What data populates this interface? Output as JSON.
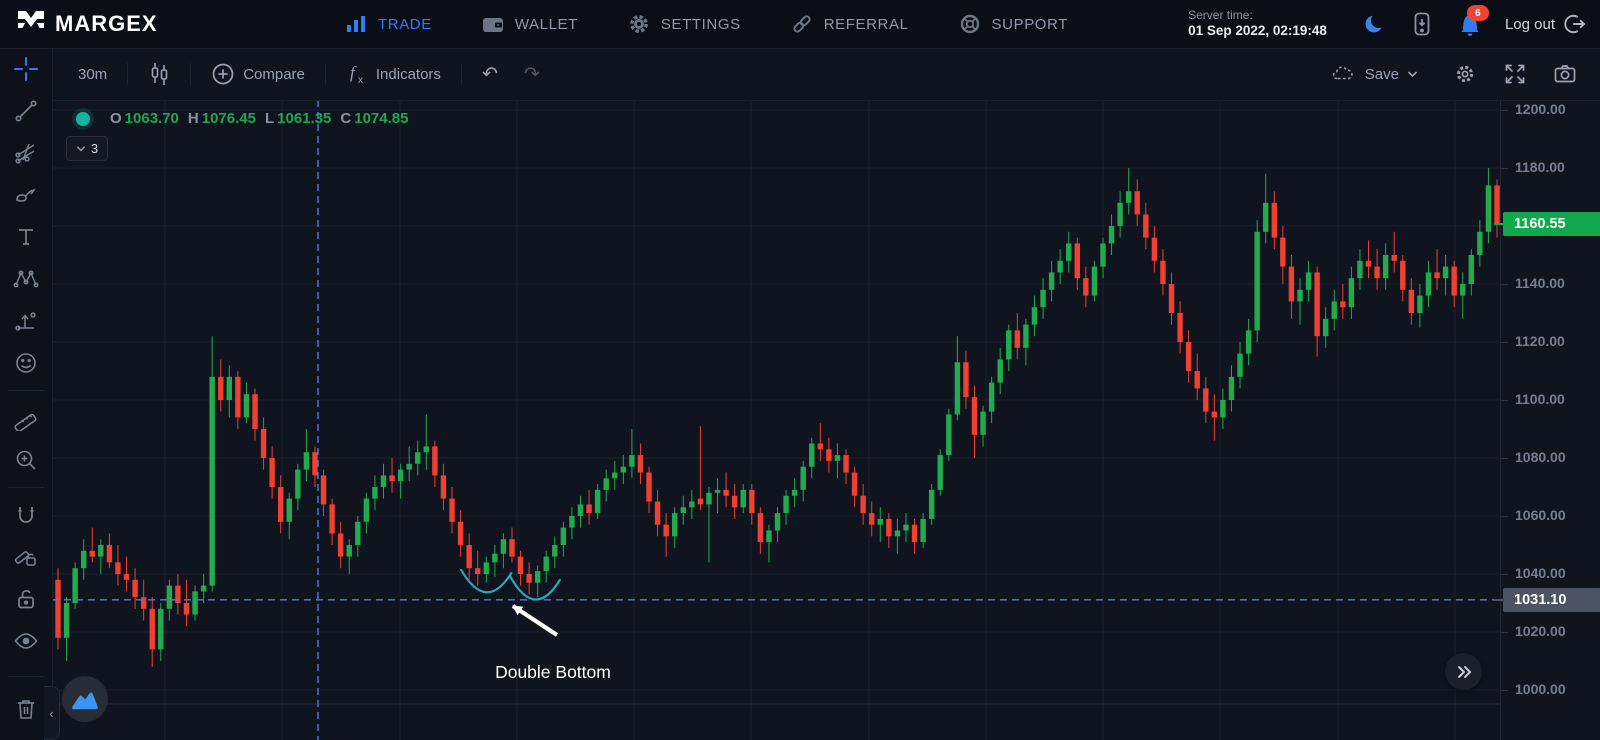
{
  "nav": {
    "brand": "MARGEX",
    "items": [
      {
        "id": "trade",
        "label": "TRADE",
        "active": true
      },
      {
        "id": "wallet",
        "label": "WALLET",
        "active": false
      },
      {
        "id": "settings",
        "label": "SETTINGS",
        "active": false
      },
      {
        "id": "referral",
        "label": "REFERRAL",
        "active": false
      },
      {
        "id": "support",
        "label": "SUPPORT",
        "active": false
      }
    ],
    "server_time_label": "Server time:",
    "server_time_value": "01 Sep 2022, 02:19:48",
    "notifications_count": "6",
    "logout_label": "Log out",
    "icons": [
      "margex-logo",
      "bar-chart-icon",
      "wallet-icon",
      "gear-icon",
      "link-icon",
      "lifebuoy-icon",
      "moon-icon",
      "mobile-app-icon",
      "bell-icon",
      "logout-icon"
    ]
  },
  "toolbar": {
    "timeframe": "30m",
    "compare_label": "Compare",
    "indicators_label": "Indicators",
    "save_label": "Save",
    "icons": [
      "candlestick-icon",
      "circle-plus-icon",
      "function-icon",
      "undo-icon",
      "redo-icon",
      "cloud-icon",
      "chevron-down-icon",
      "gear-icon",
      "fullscreen-icon",
      "camera-icon"
    ]
  },
  "sidebar": {
    "tools": [
      "crosshair",
      "trend-line",
      "pitchfork",
      "brush",
      "text",
      "xabcd-pattern",
      "forecast",
      "emoji",
      "ruler",
      "zoom-in",
      "magnet",
      "drawing-lock",
      "lock-all",
      "hide-all",
      "remove-drawings"
    ],
    "active_tool": "crosshair"
  },
  "legend": {
    "o_label": "O",
    "o_value": "1063.70",
    "h_label": "H",
    "h_value": "1076.45",
    "l_label": "L",
    "l_value": "1061.35",
    "c_label": "C",
    "c_value": "1074.85",
    "collapse_count": "3"
  },
  "price_axis": {
    "ticks": [
      "1200.00",
      "1180.00",
      "1140.00",
      "1120.00",
      "1100.00",
      "1080.00",
      "1060.00",
      "1040.00",
      "1020.00",
      "1000.00"
    ],
    "last_price": "1160.55",
    "crosshair_price": "1031.10"
  },
  "annotation": {
    "label": "Double Bottom"
  },
  "colors": {
    "up": "#22ab4e",
    "down": "#ef4031",
    "accent_blue": "#2e7cf6",
    "crosshair": "#4a7de8",
    "annotation_teal": "#2aa8c0",
    "last_price_badge": "#12a84e",
    "crosshair_badge": "#4c5362",
    "grid": "#1c2130",
    "alert_badge": "#ef4431"
  },
  "chart_data": {
    "type": "candlestick",
    "timeframe": "30m",
    "ohlc_legend": {
      "open": 1063.7,
      "high": 1076.45,
      "low": 1061.35,
      "close": 1074.85
    },
    "ylim": [
      998,
      1204
    ],
    "grid_levels": [
      1200,
      1180,
      1160,
      1140,
      1120,
      1100,
      1080,
      1060,
      1040,
      1020,
      1000
    ],
    "y_tick_labels": [
      1200,
      1180,
      1140,
      1120,
      1100,
      1080,
      1060,
      1040,
      1020,
      1000
    ],
    "last_price": 1160.55,
    "crosshair_price": 1031.1,
    "legend_note": "grid on, dark theme, no time axis labels visible",
    "candles": [
      [
        1038,
        1042,
        1014,
        1018
      ],
      [
        1018,
        1032,
        1010,
        1030
      ],
      [
        1030,
        1044,
        1028,
        1042
      ],
      [
        1042,
        1052,
        1038,
        1048
      ],
      [
        1048,
        1056,
        1044,
        1046
      ],
      [
        1046,
        1052,
        1040,
        1050
      ],
      [
        1050,
        1054,
        1042,
        1044
      ],
      [
        1044,
        1050,
        1036,
        1040
      ],
      [
        1040,
        1046,
        1034,
        1038
      ],
      [
        1038,
        1042,
        1028,
        1032
      ],
      [
        1032,
        1038,
        1024,
        1028
      ],
      [
        1028,
        1032,
        1008,
        1014
      ],
      [
        1014,
        1030,
        1010,
        1028
      ],
      [
        1028,
        1038,
        1024,
        1036
      ],
      [
        1036,
        1040,
        1026,
        1030
      ],
      [
        1030,
        1038,
        1022,
        1026
      ],
      [
        1026,
        1036,
        1024,
        1034
      ],
      [
        1034,
        1040,
        1030,
        1036
      ],
      [
        1036,
        1122,
        1034,
        1108
      ],
      [
        1108,
        1114,
        1096,
        1100
      ],
      [
        1100,
        1112,
        1094,
        1108
      ],
      [
        1108,
        1110,
        1090,
        1094
      ],
      [
        1094,
        1106,
        1092,
        1102
      ],
      [
        1102,
        1104,
        1086,
        1090
      ],
      [
        1090,
        1094,
        1076,
        1080
      ],
      [
        1080,
        1084,
        1066,
        1070
      ],
      [
        1070,
        1074,
        1054,
        1058
      ],
      [
        1058,
        1068,
        1052,
        1066
      ],
      [
        1066,
        1078,
        1062,
        1076
      ],
      [
        1076,
        1090,
        1072,
        1082
      ],
      [
        1082,
        1084,
        1070,
        1074
      ],
      [
        1074,
        1076,
        1060,
        1064
      ],
      [
        1064,
        1066,
        1050,
        1054
      ],
      [
        1054,
        1058,
        1042,
        1046
      ],
      [
        1046,
        1052,
        1040,
        1050
      ],
      [
        1050,
        1060,
        1046,
        1058
      ],
      [
        1058,
        1068,
        1054,
        1066
      ],
      [
        1066,
        1074,
        1062,
        1070
      ],
      [
        1070,
        1078,
        1066,
        1074
      ],
      [
        1074,
        1080,
        1068,
        1072
      ],
      [
        1072,
        1078,
        1066,
        1076
      ],
      [
        1076,
        1084,
        1072,
        1078
      ],
      [
        1078,
        1086,
        1074,
        1082
      ],
      [
        1082,
        1095,
        1076,
        1084
      ],
      [
        1084,
        1086,
        1070,
        1074
      ],
      [
        1074,
        1078,
        1062,
        1066
      ],
      [
        1066,
        1070,
        1054,
        1058
      ],
      [
        1058,
        1062,
        1046,
        1050
      ],
      [
        1050,
        1054,
        1038,
        1042
      ],
      [
        1042,
        1048,
        1036,
        1040
      ],
      [
        1040,
        1046,
        1037,
        1044
      ],
      [
        1044,
        1050,
        1039,
        1047
      ],
      [
        1047,
        1054,
        1042,
        1052
      ],
      [
        1052,
        1056,
        1044,
        1046
      ],
      [
        1046,
        1048,
        1036,
        1040
      ],
      [
        1040,
        1044,
        1033,
        1037
      ],
      [
        1037,
        1043,
        1032,
        1041
      ],
      [
        1041,
        1048,
        1037,
        1046
      ],
      [
        1046,
        1053,
        1042,
        1050
      ],
      [
        1050,
        1058,
        1046,
        1056
      ],
      [
        1056,
        1063,
        1052,
        1060
      ],
      [
        1060,
        1067,
        1056,
        1064
      ],
      [
        1064,
        1069,
        1057,
        1061
      ],
      [
        1061,
        1071,
        1059,
        1069
      ],
      [
        1069,
        1076,
        1065,
        1073
      ],
      [
        1073,
        1079,
        1069,
        1075
      ],
      [
        1075,
        1081,
        1071,
        1077
      ],
      [
        1077,
        1090,
        1073,
        1081
      ],
      [
        1081,
        1085,
        1071,
        1075
      ],
      [
        1075,
        1077,
        1061,
        1065
      ],
      [
        1065,
        1069,
        1053,
        1057
      ],
      [
        1057,
        1061,
        1046,
        1053
      ],
      [
        1053,
        1063,
        1049,
        1061
      ],
      [
        1061,
        1067,
        1057,
        1063
      ],
      [
        1063,
        1069,
        1059,
        1065
      ],
      [
        1066,
        1091,
        1062,
        1064
      ],
      [
        1064,
        1070,
        1044,
        1068
      ],
      [
        1068,
        1073,
        1061,
        1069
      ],
      [
        1069,
        1075,
        1063,
        1067
      ],
      [
        1067,
        1071,
        1059,
        1063
      ],
      [
        1063,
        1071,
        1061,
        1069
      ],
      [
        1069,
        1071,
        1057,
        1061
      ],
      [
        1061,
        1063,
        1047,
        1051
      ],
      [
        1051,
        1057,
        1044,
        1055
      ],
      [
        1055,
        1063,
        1051,
        1061
      ],
      [
        1061,
        1069,
        1057,
        1067
      ],
      [
        1067,
        1073,
        1063,
        1069
      ],
      [
        1069,
        1079,
        1065,
        1077
      ],
      [
        1077,
        1087,
        1073,
        1085
      ],
      [
        1085,
        1092,
        1079,
        1083
      ],
      [
        1083,
        1087,
        1075,
        1079
      ],
      [
        1079,
        1085,
        1073,
        1081
      ],
      [
        1081,
        1083,
        1071,
        1075
      ],
      [
        1075,
        1077,
        1063,
        1067
      ],
      [
        1067,
        1071,
        1057,
        1061
      ],
      [
        1061,
        1065,
        1053,
        1057
      ],
      [
        1057,
        1063,
        1051,
        1059
      ],
      [
        1059,
        1061,
        1049,
        1053
      ],
      [
        1053,
        1059,
        1047,
        1055
      ],
      [
        1055,
        1061,
        1051,
        1057
      ],
      [
        1057,
        1059,
        1047,
        1051
      ],
      [
        1051,
        1061,
        1049,
        1059
      ],
      [
        1059,
        1071,
        1057,
        1069
      ],
      [
        1069,
        1083,
        1067,
        1081
      ],
      [
        1081,
        1097,
        1079,
        1095
      ],
      [
        1095,
        1122,
        1093,
        1113
      ],
      [
        1113,
        1117,
        1097,
        1101
      ],
      [
        1101,
        1105,
        1080,
        1088
      ],
      [
        1088,
        1098,
        1084,
        1096
      ],
      [
        1096,
        1108,
        1092,
        1106
      ],
      [
        1106,
        1118,
        1102,
        1114
      ],
      [
        1114,
        1126,
        1110,
        1124
      ],
      [
        1124,
        1130,
        1114,
        1118
      ],
      [
        1118,
        1128,
        1112,
        1126
      ],
      [
        1126,
        1136,
        1122,
        1132
      ],
      [
        1132,
        1142,
        1128,
        1138
      ],
      [
        1138,
        1148,
        1134,
        1144
      ],
      [
        1144,
        1152,
        1140,
        1148
      ],
      [
        1148,
        1158,
        1144,
        1154
      ],
      [
        1154,
        1156,
        1138,
        1142
      ],
      [
        1142,
        1146,
        1132,
        1136
      ],
      [
        1136,
        1148,
        1134,
        1146
      ],
      [
        1146,
        1156,
        1142,
        1154
      ],
      [
        1154,
        1164,
        1150,
        1160
      ],
      [
        1160,
        1172,
        1156,
        1168
      ],
      [
        1168,
        1180,
        1164,
        1172
      ],
      [
        1172,
        1176,
        1160,
        1164
      ],
      [
        1164,
        1168,
        1152,
        1156
      ],
      [
        1156,
        1160,
        1144,
        1148
      ],
      [
        1148,
        1152,
        1136,
        1140
      ],
      [
        1140,
        1144,
        1126,
        1130
      ],
      [
        1130,
        1134,
        1116,
        1120
      ],
      [
        1120,
        1124,
        1106,
        1110
      ],
      [
        1110,
        1116,
        1100,
        1104
      ],
      [
        1104,
        1108,
        1092,
        1096
      ],
      [
        1096,
        1102,
        1086,
        1094
      ],
      [
        1094,
        1104,
        1090,
        1100
      ],
      [
        1100,
        1112,
        1096,
        1108
      ],
      [
        1108,
        1120,
        1104,
        1116
      ],
      [
        1116,
        1128,
        1112,
        1124
      ],
      [
        1124,
        1162,
        1120,
        1158
      ],
      [
        1158,
        1178,
        1154,
        1168
      ],
      [
        1168,
        1172,
        1152,
        1156
      ],
      [
        1156,
        1160,
        1140,
        1146
      ],
      [
        1146,
        1150,
        1128,
        1134
      ],
      [
        1134,
        1142,
        1126,
        1138
      ],
      [
        1138,
        1148,
        1134,
        1144
      ],
      [
        1144,
        1146,
        1115,
        1122
      ],
      [
        1122,
        1132,
        1118,
        1128
      ],
      [
        1128,
        1138,
        1124,
        1134
      ],
      [
        1134,
        1140,
        1128,
        1132
      ],
      [
        1132,
        1146,
        1128,
        1142
      ],
      [
        1142,
        1152,
        1138,
        1148
      ],
      [
        1148,
        1155,
        1142,
        1146
      ],
      [
        1146,
        1152,
        1138,
        1142
      ],
      [
        1142,
        1154,
        1138,
        1150
      ],
      [
        1150,
        1158,
        1144,
        1148
      ],
      [
        1148,
        1150,
        1134,
        1138
      ],
      [
        1138,
        1142,
        1126,
        1130
      ],
      [
        1130,
        1140,
        1125,
        1136
      ],
      [
        1136,
        1148,
        1132,
        1144
      ],
      [
        1144,
        1152,
        1138,
        1142
      ],
      [
        1142,
        1150,
        1136,
        1146
      ],
      [
        1146,
        1148,
        1132,
        1136
      ],
      [
        1136,
        1144,
        1128,
        1140
      ],
      [
        1140,
        1152,
        1136,
        1150
      ],
      [
        1150,
        1162,
        1146,
        1158
      ],
      [
        1158,
        1180,
        1154,
        1174
      ],
      [
        1174,
        1176,
        1156,
        1160.6
      ]
    ],
    "annotations": {
      "double_bottom": {
        "label": "Double Bottom",
        "arc1_idx": [
          48,
          52
        ],
        "arc2_idx": [
          53,
          58
        ],
        "pattern_price_level": 1036
      }
    }
  }
}
